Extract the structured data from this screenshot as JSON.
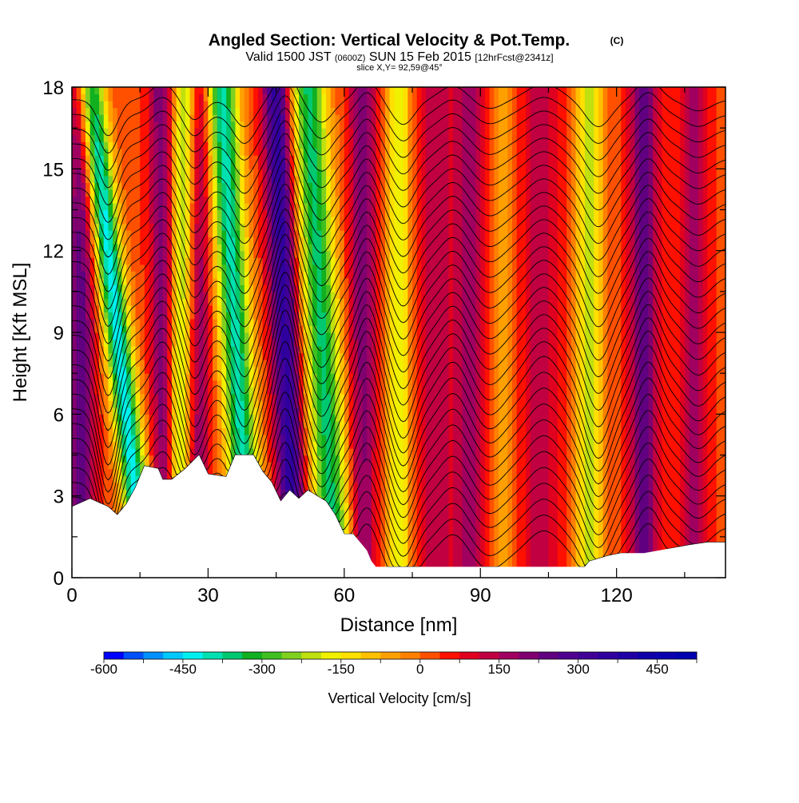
{
  "chart_data": {
    "type": "heatmap",
    "title": "Angled Section: Vertical Velocity & Pot.Temp.",
    "title_mark": "(C)",
    "subtitle": {
      "valid_prefix": "Valid 1500 JST",
      "zulu": "(0600Z)",
      "date": "SUN 15 Feb 2015",
      "forecast": "[12hrFcst@2341z]",
      "slice": "slice X,Y= 92,59@45°"
    },
    "xlabel": "Distance [nm]",
    "ylabel": "Height [Kft MSL]",
    "xlim": [
      0,
      144
    ],
    "ylim": [
      0,
      18
    ],
    "x_ticks": [
      0,
      30,
      60,
      90,
      120
    ],
    "y_ticks": [
      0,
      3,
      6,
      9,
      12,
      15,
      18
    ],
    "x_tick_labels": [
      "0",
      "30",
      "60",
      "90",
      "120"
    ],
    "y_tick_labels": [
      "0",
      "3",
      "6",
      "9",
      "12",
      "15",
      "18"
    ],
    "grid": false,
    "colorbar": {
      "label": "Vertical Velocity [cm/s]",
      "min": -600,
      "max": 525,
      "step": 37.5,
      "tick_values": [
        -600,
        -450,
        -300,
        -150,
        0,
        150,
        300,
        450
      ],
      "tick_labels": [
        "-600",
        "-450",
        "-300",
        "-150",
        "0",
        "150",
        "300",
        "450"
      ],
      "colors": [
        "#0000ff",
        "#0050ff",
        "#0090ff",
        "#00c8ff",
        "#00f0f0",
        "#00e0b0",
        "#00c870",
        "#10b020",
        "#40c020",
        "#80d020",
        "#c0e010",
        "#f0f000",
        "#ffe000",
        "#ffc000",
        "#ffa000",
        "#ff8000",
        "#ff5000",
        "#ff1000",
        "#e00020",
        "#c00040",
        "#a00060",
        "#800070",
        "#600080",
        "#500090",
        "#400098",
        "#30009f",
        "#2000a5",
        "#1000aa",
        "#0800ae",
        "#0000b0"
      ]
    },
    "terrain": [
      [
        0,
        2.6
      ],
      [
        4,
        2.9
      ],
      [
        8,
        2.6
      ],
      [
        10,
        2.3
      ],
      [
        12,
        2.7
      ],
      [
        14,
        3.3
      ],
      [
        16,
        4.1
      ],
      [
        19,
        4.0
      ],
      [
        20,
        3.6
      ],
      [
        22,
        3.6
      ],
      [
        25,
        4.0
      ],
      [
        28,
        4.5
      ],
      [
        30,
        3.8
      ],
      [
        34,
        3.7
      ],
      [
        36,
        4.5
      ],
      [
        40,
        4.5
      ],
      [
        42,
        3.9
      ],
      [
        44,
        3.5
      ],
      [
        46,
        2.8
      ],
      [
        48,
        3.2
      ],
      [
        50,
        2.9
      ],
      [
        52,
        3.2
      ],
      [
        56,
        2.8
      ],
      [
        58,
        2.3
      ],
      [
        60,
        1.6
      ],
      [
        62,
        1.6
      ],
      [
        65,
        1.0
      ],
      [
        66,
        0.6
      ],
      [
        67,
        0.4
      ],
      [
        90,
        0.4
      ],
      [
        110,
        0.4
      ],
      [
        113,
        0.4
      ],
      [
        114,
        0.6
      ],
      [
        118,
        0.8
      ],
      [
        121,
        0.9
      ],
      [
        126,
        0.9
      ],
      [
        136,
        1.2
      ],
      [
        140,
        1.3
      ],
      [
        144,
        1.3
      ]
    ],
    "velocity_axes": [
      {
        "x0": 2,
        "slope": 0,
        "amp": 210,
        "width": 3
      },
      {
        "x0": 10,
        "slope": -6,
        "amp": -460,
        "width": 3
      },
      {
        "x0": 20,
        "slope": -0.5,
        "amp": 190,
        "width": 2.5
      },
      {
        "x0": 24,
        "slope": 0.8,
        "amp": -250,
        "width": 2.5
      },
      {
        "x0": 28,
        "slope": 0.3,
        "amp": 150,
        "width": 2.5
      },
      {
        "x0": 36,
        "slope": -3,
        "amp": -420,
        "width": 3.5
      },
      {
        "x0": 47,
        "slope": -2,
        "amp": 330,
        "width": 3
      },
      {
        "x0": 55,
        "slope": -3,
        "amp": -380,
        "width": 4
      },
      {
        "x0": 64,
        "slope": 0,
        "amp": 170,
        "width": 3
      },
      {
        "x0": 72,
        "slope": 0,
        "amp": -220,
        "width": 2.5
      },
      {
        "x0": 80,
        "slope": 0,
        "amp": 110,
        "width": 4
      },
      {
        "x0": 88,
        "slope": 0,
        "amp": 140,
        "width": 3.5
      },
      {
        "x0": 95,
        "slope": 0,
        "amp": -80,
        "width": 3
      },
      {
        "x0": 103,
        "slope": 0,
        "amp": 110,
        "width": 4
      },
      {
        "x0": 114,
        "slope": 0,
        "amp": -230,
        "width": 3
      },
      {
        "x0": 126,
        "slope": 0,
        "amp": 220,
        "width": 3
      },
      {
        "x0": 137,
        "slope": 0,
        "amp": 140,
        "width": 3
      }
    ],
    "isentrope_troughs": [
      {
        "x0": 8,
        "depth": 3.2,
        "width": 3
      },
      {
        "x0": 20,
        "depth": -1.4,
        "width": 3.5
      },
      {
        "x0": 27,
        "depth": 1.8,
        "width": 3
      },
      {
        "x0": 38,
        "depth": 2.4,
        "width": 3.5
      },
      {
        "x0": 47,
        "depth": -2.6,
        "width": 3
      },
      {
        "x0": 55,
        "depth": 2.0,
        "width": 3.5
      },
      {
        "x0": 65,
        "depth": -1.8,
        "width": 3
      },
      {
        "x0": 73,
        "depth": 2.2,
        "width": 3.5
      },
      {
        "x0": 84,
        "depth": -1.2,
        "width": 4
      },
      {
        "x0": 92,
        "depth": 0.8,
        "width": 4
      },
      {
        "x0": 104,
        "depth": -1.4,
        "width": 5
      },
      {
        "x0": 116,
        "depth": 2.4,
        "width": 4
      },
      {
        "x0": 127,
        "depth": -1.8,
        "width": 3.5
      },
      {
        "x0": 138,
        "depth": 1.0,
        "width": 4
      }
    ],
    "isentrope_levels": {
      "count": 32,
      "base_height": 0.8,
      "spacing": 0.54
    }
  }
}
